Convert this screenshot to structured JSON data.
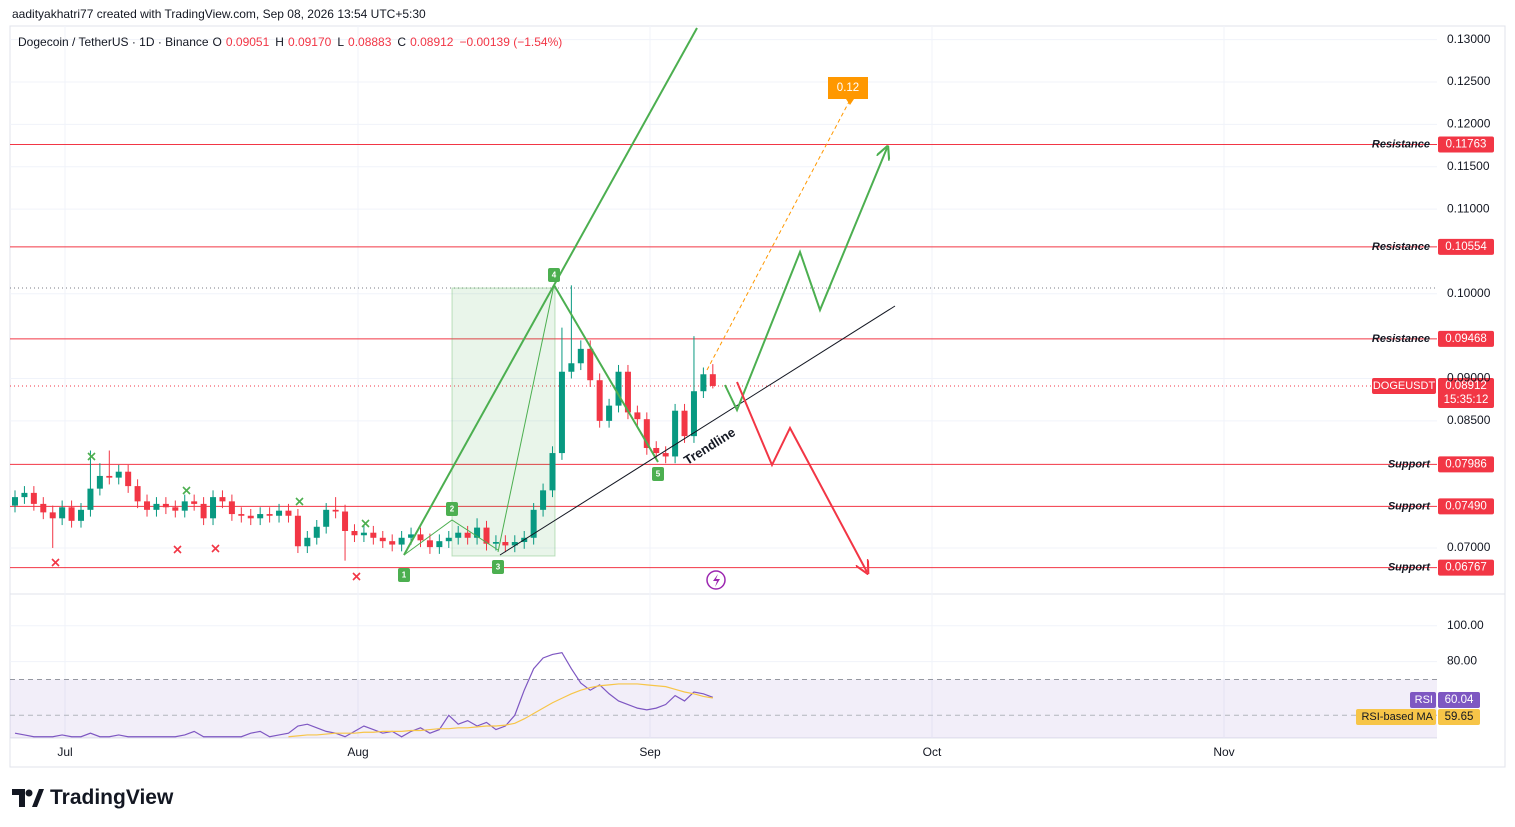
{
  "header": {
    "text": "aadityakhatri77 created with TradingView.com, Sep 08, 2026 13:54 UTC+5:30"
  },
  "footer": {
    "brand": "TradingView"
  },
  "chart_data": {
    "type": "candlestick",
    "legend": {
      "symbol": "Dogecoin / TetherUS · 1D · Binance",
      "items": [
        {
          "key": "O",
          "label": "0.09051"
        },
        {
          "key": "H",
          "label": "0.09170"
        },
        {
          "key": "L",
          "label": "0.08883"
        },
        {
          "key": "C",
          "label": "0.08912"
        }
      ],
      "change": "−0.00139 (−1.54%)"
    },
    "up_color": "#089981",
    "down_color": "#f23645",
    "open": [
      0.075,
      0.076,
      0.0765,
      0.0752,
      0.0742,
      0.0735,
      0.0748,
      0.0732,
      0.0745,
      0.077,
      0.0785,
      0.0783,
      0.079,
      0.0773,
      0.0755,
      0.0745,
      0.0752,
      0.0748,
      0.0744,
      0.0755,
      0.0752,
      0.0735,
      0.076,
      0.0755,
      0.074,
      0.0738,
      0.0735,
      0.074,
      0.0738,
      0.0744,
      0.0738,
      0.0702,
      0.0712,
      0.0725,
      0.0745,
      0.0743,
      0.072,
      0.0715,
      0.0718,
      0.0712,
      0.0708,
      0.0704,
      0.0712,
      0.0716,
      0.0709,
      0.0701,
      0.0708,
      0.0712,
      0.0718,
      0.0712,
      0.0724,
      0.0705,
      0.0707,
      0.0703,
      0.0707,
      0.0712,
      0.0745,
      0.0768,
      0.0812,
      0.0908,
      0.0918,
      0.0935,
      0.0898,
      0.085,
      0.0868,
      0.0908,
      0.086,
      0.0852,
      0.0818,
      0.0812,
      0.0808,
      0.0862,
      0.0832,
      0.0885,
      0.09051
    ],
    "high": [
      0.0768,
      0.0773,
      0.0773,
      0.076,
      0.075,
      0.0756,
      0.0756,
      0.0753,
      0.0815,
      0.08,
      0.0815,
      0.0798,
      0.0798,
      0.0781,
      0.0763,
      0.076,
      0.076,
      0.0756,
      0.0763,
      0.0763,
      0.076,
      0.0768,
      0.0768,
      0.0763,
      0.0748,
      0.0746,
      0.0748,
      0.0748,
      0.0752,
      0.0752,
      0.0746,
      0.072,
      0.0733,
      0.0753,
      0.076,
      0.0751,
      0.0728,
      0.0726,
      0.0726,
      0.072,
      0.0716,
      0.072,
      0.0724,
      0.0724,
      0.0717,
      0.0716,
      0.072,
      0.0726,
      0.0726,
      0.0735,
      0.0732,
      0.0715,
      0.0715,
      0.0715,
      0.072,
      0.0753,
      0.0776,
      0.082,
      0.096,
      0.101,
      0.0945,
      0.0945,
      0.0906,
      0.0876,
      0.0916,
      0.0916,
      0.0868,
      0.086,
      0.0826,
      0.082,
      0.087,
      0.087,
      0.095,
      0.0913,
      0.0917
    ],
    "low": [
      0.0742,
      0.0752,
      0.0744,
      0.0734,
      0.07,
      0.0727,
      0.0724,
      0.0724,
      0.0737,
      0.0762,
      0.0775,
      0.0775,
      0.0765,
      0.0747,
      0.0737,
      0.0737,
      0.074,
      0.0736,
      0.0736,
      0.0744,
      0.0727,
      0.0727,
      0.0747,
      0.0732,
      0.073,
      0.0727,
      0.0727,
      0.073,
      0.073,
      0.073,
      0.0694,
      0.0694,
      0.0704,
      0.0717,
      0.0735,
      0.0685,
      0.0707,
      0.0707,
      0.0704,
      0.07,
      0.0696,
      0.0696,
      0.0704,
      0.0701,
      0.0693,
      0.0693,
      0.07,
      0.0704,
      0.0704,
      0.0704,
      0.0697,
      0.0697,
      0.0695,
      0.0695,
      0.0699,
      0.0704,
      0.0737,
      0.076,
      0.0804,
      0.09,
      0.091,
      0.089,
      0.0842,
      0.0842,
      0.086,
      0.0852,
      0.0844,
      0.081,
      0.0804,
      0.08,
      0.08,
      0.0824,
      0.0824,
      0.0877,
      0.08883
    ],
    "close": [
      0.076,
      0.0765,
      0.0752,
      0.0742,
      0.0735,
      0.0748,
      0.0732,
      0.0745,
      0.077,
      0.0785,
      0.0783,
      0.079,
      0.0773,
      0.0755,
      0.0745,
      0.0752,
      0.0748,
      0.0744,
      0.0755,
      0.0752,
      0.0735,
      0.076,
      0.0755,
      0.074,
      0.0738,
      0.0735,
      0.074,
      0.0738,
      0.0744,
      0.0738,
      0.0702,
      0.0712,
      0.0725,
      0.0745,
      0.0743,
      0.072,
      0.0715,
      0.0718,
      0.0712,
      0.0708,
      0.0704,
      0.0712,
      0.0716,
      0.0709,
      0.0701,
      0.0708,
      0.0712,
      0.0718,
      0.0712,
      0.0724,
      0.0705,
      0.0707,
      0.0703,
      0.0707,
      0.0712,
      0.0745,
      0.0768,
      0.0812,
      0.0908,
      0.0918,
      0.0935,
      0.0898,
      0.085,
      0.0868,
      0.0908,
      0.086,
      0.0852,
      0.0818,
      0.0812,
      0.0808,
      0.0862,
      0.0832,
      0.0885,
      0.0905,
      0.08912
    ],
    "x_labels": [
      "Jul",
      "Aug",
      "Sep",
      "Oct",
      "Nov"
    ],
    "ylim": [
      0.0648,
      0.1335
    ],
    "yticks": [
      {
        "value": 0.13,
        "label": "0.13000"
      },
      {
        "value": 0.125,
        "label": "0.12500"
      },
      {
        "value": 0.12,
        "label": "0.12000"
      },
      {
        "value": 0.115,
        "label": "0.11500"
      },
      {
        "value": 0.11,
        "label": "0.11000"
      },
      {
        "value": 0.1,
        "label": "0.10000"
      },
      {
        "value": 0.09,
        "label": "0.09000"
      },
      {
        "value": 0.085,
        "label": "0.08500"
      },
      {
        "value": 0.07,
        "label": "0.07000"
      }
    ],
    "grid": true,
    "levels": [
      {
        "label": "Resistance",
        "value": 0.11763,
        "color": "#f23645"
      },
      {
        "label": "Resistance",
        "value": 0.10554,
        "color": "#f23645"
      },
      {
        "label": "Resistance",
        "value": 0.09468,
        "color": "#f23645"
      },
      {
        "label": "Support",
        "value": 0.07986,
        "color": "#f23645"
      },
      {
        "label": "Support",
        "value": 0.0749,
        "value_label": "0.07490",
        "color": "#f23645"
      },
      {
        "label": "Support",
        "value": 0.06767,
        "color": "#f23645"
      }
    ],
    "last_price": {
      "symbol": "DOGEUSDT",
      "value": 0.08912,
      "countdown": "15:35:12",
      "color": "#f23645"
    },
    "pattern_points": [
      "1",
      "2",
      "3",
      "4",
      "5"
    ],
    "trendline_label": "Trendline",
    "target_label": "0.12",
    "rsi": {
      "ylim": [
        37.3,
        114.4
      ],
      "yticks": [
        {
          "value": 100,
          "label": "100.00"
        },
        {
          "value": 80,
          "label": "80.00"
        }
      ],
      "band": [
        70,
        30
      ],
      "midline": 50,
      "series": [
        {
          "name": "RSI",
          "color": "#7e57c2",
          "values": [
            40,
            39,
            38,
            38,
            38,
            39,
            38,
            38,
            40,
            38,
            38,
            39,
            38,
            38,
            38,
            38,
            38,
            38,
            39,
            41,
            38,
            38,
            38,
            38,
            38,
            40,
            41,
            38,
            39,
            40,
            44,
            45,
            43,
            41,
            40,
            38,
            41,
            44,
            42,
            40,
            41,
            38,
            41,
            43,
            40,
            42,
            50,
            45,
            47,
            44,
            46,
            42,
            44,
            50,
            64,
            76,
            82,
            84,
            85,
            76,
            68,
            64,
            67,
            62,
            58,
            56,
            54,
            53,
            54,
            56,
            61,
            58,
            63,
            62,
            60.04
          ]
        },
        {
          "name": "RSI-based MA",
          "color": "#f7c548",
          "values": [
            null,
            null,
            null,
            null,
            null,
            null,
            null,
            null,
            null,
            null,
            null,
            null,
            null,
            null,
            null,
            null,
            null,
            null,
            null,
            null,
            null,
            null,
            null,
            null,
            null,
            null,
            null,
            null,
            null,
            38,
            38.5,
            39,
            39,
            39.5,
            40,
            40,
            40,
            40.5,
            40.5,
            41,
            41,
            41,
            41.5,
            41.5,
            42,
            42.5,
            42.5,
            43,
            43,
            43.5,
            44,
            44,
            44.5,
            45.5,
            48,
            51,
            54,
            57,
            59.5,
            62,
            64,
            65.5,
            66.5,
            67,
            67.5,
            67.5,
            67.5,
            67,
            66.5,
            66,
            64.5,
            63,
            62,
            60.5,
            59.65
          ]
        }
      ]
    }
  }
}
